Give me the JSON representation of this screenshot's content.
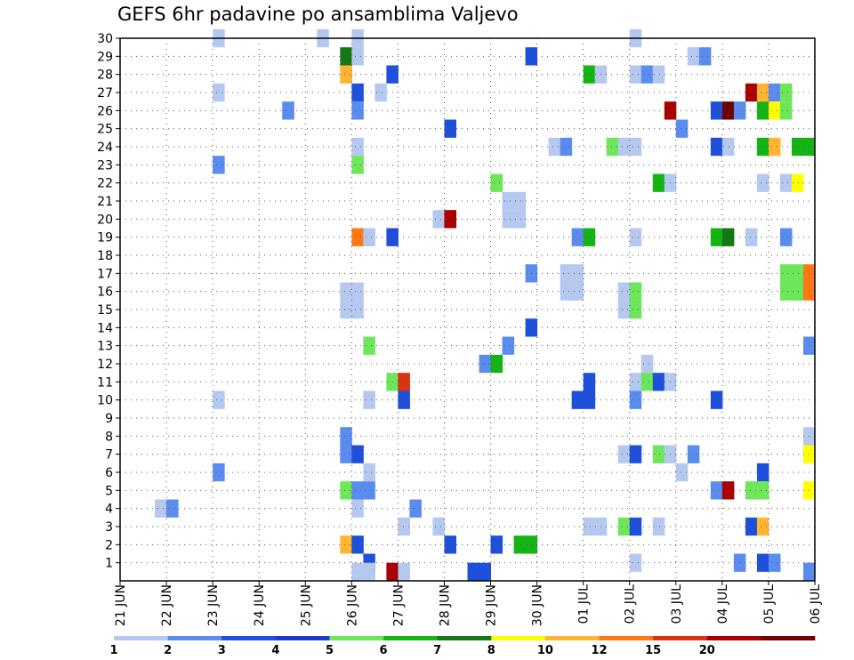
{
  "chart_data": {
    "type": "heatmap",
    "title": "GEFS 6hr padavine po ansamblima Valjevo",
    "x_ticks": [
      "21 JUN",
      "22 JUN",
      "23 JUN",
      "24 JUN",
      "25 JUN",
      "26 JUN",
      "27 JUN",
      "28 JUN",
      "29 JUN",
      "30 JUN",
      "01 JUL",
      "02 JUL",
      "03 JUL",
      "04 JUL",
      "05 JUL",
      "06 JUL"
    ],
    "x_range_days": [
      0,
      15
    ],
    "y_ticks": [
      1,
      2,
      3,
      4,
      5,
      6,
      7,
      8,
      9,
      10,
      11,
      12,
      13,
      14,
      15,
      16,
      17,
      18,
      19,
      20,
      21,
      22,
      23,
      24,
      25,
      26,
      27,
      28,
      29,
      30
    ],
    "y_range": [
      0,
      30
    ],
    "grid": "dotted",
    "legend_placement": "bottom",
    "colorbar": {
      "labels": [
        "1",
        "2",
        "3",
        "4",
        "5",
        "6",
        "7",
        "8",
        "10",
        "12",
        "15",
        "20"
      ],
      "colors": [
        "#b4c8f0",
        "#5a8cf0",
        "#1e50dc",
        "#1e3cc8",
        "#6ee65a",
        "#14b414",
        "#147814",
        "#ffff00",
        "#ffb432",
        "#ff7814",
        "#dc3214",
        "#aa0000",
        "#6e0000"
      ]
    },
    "cells": [
      {
        "x": 2.0,
        "y": 30,
        "c": 1
      },
      {
        "x": 4.25,
        "y": 30,
        "c": 1
      },
      {
        "x": 5.0,
        "y": 30,
        "c": 1
      },
      {
        "x": 11.0,
        "y": 30,
        "c": 1
      },
      {
        "x": 4.75,
        "y": 29,
        "c": 7
      },
      {
        "x": 5.0,
        "y": 29,
        "c": 1
      },
      {
        "x": 8.75,
        "y": 29,
        "c": 3
      },
      {
        "x": 12.25,
        "y": 29,
        "c": 1
      },
      {
        "x": 12.5,
        "y": 29,
        "c": 2
      },
      {
        "x": 4.75,
        "y": 28,
        "c": 9
      },
      {
        "x": 5.75,
        "y": 28,
        "c": 3
      },
      {
        "x": 10.0,
        "y": 28,
        "c": 6
      },
      {
        "x": 10.25,
        "y": 28,
        "c": 1
      },
      {
        "x": 11.0,
        "y": 28,
        "c": 1
      },
      {
        "x": 11.25,
        "y": 28,
        "c": 2
      },
      {
        "x": 11.5,
        "y": 28,
        "c": 1
      },
      {
        "x": 2.0,
        "y": 27,
        "c": 1
      },
      {
        "x": 5.0,
        "y": 27,
        "c": 3
      },
      {
        "x": 5.5,
        "y": 27,
        "c": 1
      },
      {
        "x": 13.5,
        "y": 27,
        "c": 12
      },
      {
        "x": 13.75,
        "y": 27,
        "c": 9
      },
      {
        "x": 14.0,
        "y": 27,
        "c": 2
      },
      {
        "x": 14.25,
        "y": 27,
        "c": 5
      },
      {
        "x": 3.5,
        "y": 26,
        "c": 2
      },
      {
        "x": 5.0,
        "y": 26,
        "c": 2
      },
      {
        "x": 11.75,
        "y": 26,
        "c": 12
      },
      {
        "x": 12.75,
        "y": 26,
        "c": 3
      },
      {
        "x": 13.0,
        "y": 26,
        "c": 13
      },
      {
        "x": 13.25,
        "y": 26,
        "c": 2
      },
      {
        "x": 13.75,
        "y": 26,
        "c": 6
      },
      {
        "x": 14.0,
        "y": 26,
        "c": 8
      },
      {
        "x": 14.25,
        "y": 26,
        "c": 5
      },
      {
        "x": 7.0,
        "y": 25,
        "c": 3
      },
      {
        "x": 12.0,
        "y": 25,
        "c": 2
      },
      {
        "x": 5.0,
        "y": 24,
        "c": 1
      },
      {
        "x": 9.25,
        "y": 24,
        "c": 1
      },
      {
        "x": 9.5,
        "y": 24,
        "c": 2
      },
      {
        "x": 10.5,
        "y": 24,
        "c": 5
      },
      {
        "x": 10.75,
        "y": 24,
        "c": 1
      },
      {
        "x": 11.0,
        "y": 24,
        "c": 1
      },
      {
        "x": 12.75,
        "y": 24,
        "c": 3
      },
      {
        "x": 13.0,
        "y": 24,
        "c": 1
      },
      {
        "x": 13.75,
        "y": 24,
        "c": 6
      },
      {
        "x": 14.0,
        "y": 24,
        "c": 9
      },
      {
        "x": 14.5,
        "y": 24,
        "c": 6
      },
      {
        "x": 14.75,
        "y": 24,
        "c": 6
      },
      {
        "x": 2.0,
        "y": 23,
        "c": 2
      },
      {
        "x": 5.0,
        "y": 23,
        "c": 5
      },
      {
        "x": 8.0,
        "y": 22,
        "c": 5
      },
      {
        "x": 11.5,
        "y": 22,
        "c": 6
      },
      {
        "x": 11.75,
        "y": 22,
        "c": 1
      },
      {
        "x": 13.75,
        "y": 22,
        "c": 1
      },
      {
        "x": 14.25,
        "y": 22,
        "c": 1
      },
      {
        "x": 14.5,
        "y": 22,
        "c": 8
      },
      {
        "x": 8.25,
        "y": 21,
        "c": 1
      },
      {
        "x": 8.5,
        "y": 21,
        "c": 1
      },
      {
        "x": 8.25,
        "y": 20,
        "c": 1
      },
      {
        "x": 8.5,
        "y": 20,
        "c": 1
      },
      {
        "x": 6.75,
        "y": 20,
        "c": 1
      },
      {
        "x": 7.0,
        "y": 20,
        "c": 12
      },
      {
        "x": 5.0,
        "y": 19,
        "c": 10
      },
      {
        "x": 5.25,
        "y": 19,
        "c": 1
      },
      {
        "x": 5.75,
        "y": 19,
        "c": 3
      },
      {
        "x": 9.75,
        "y": 19,
        "c": 2
      },
      {
        "x": 10.0,
        "y": 19,
        "c": 6
      },
      {
        "x": 11.0,
        "y": 19,
        "c": 1
      },
      {
        "x": 12.75,
        "y": 19,
        "c": 6
      },
      {
        "x": 13.0,
        "y": 19,
        "c": 7
      },
      {
        "x": 13.5,
        "y": 19,
        "c": 1
      },
      {
        "x": 14.25,
        "y": 19,
        "c": 2
      },
      {
        "x": 8.75,
        "y": 17,
        "c": 2
      },
      {
        "x": 9.5,
        "y": 17,
        "c": 1
      },
      {
        "x": 9.75,
        "y": 17,
        "c": 1
      },
      {
        "x": 14.25,
        "y": 17,
        "c": 5
      },
      {
        "x": 14.5,
        "y": 17,
        "c": 5
      },
      {
        "x": 14.75,
        "y": 17,
        "c": 10
      },
      {
        "x": 9.5,
        "y": 16,
        "c": 1
      },
      {
        "x": 9.75,
        "y": 16,
        "c": 1
      },
      {
        "x": 14.25,
        "y": 16,
        "c": 5
      },
      {
        "x": 14.5,
        "y": 16,
        "c": 5
      },
      {
        "x": 14.75,
        "y": 16,
        "c": 10
      },
      {
        "x": 4.75,
        "y": 16,
        "c": 1
      },
      {
        "x": 5.0,
        "y": 16,
        "c": 1
      },
      {
        "x": 4.75,
        "y": 15,
        "c": 1
      },
      {
        "x": 5.0,
        "y": 15,
        "c": 1
      },
      {
        "x": 10.75,
        "y": 16,
        "c": 1
      },
      {
        "x": 11.0,
        "y": 16,
        "c": 5
      },
      {
        "x": 10.75,
        "y": 15,
        "c": 1
      },
      {
        "x": 11.0,
        "y": 15,
        "c": 5
      },
      {
        "x": 8.75,
        "y": 14,
        "c": 3
      },
      {
        "x": 5.25,
        "y": 13,
        "c": 5
      },
      {
        "x": 8.25,
        "y": 13,
        "c": 2
      },
      {
        "x": 14.75,
        "y": 13,
        "c": 2
      },
      {
        "x": 7.75,
        "y": 12,
        "c": 2
      },
      {
        "x": 8.0,
        "y": 12,
        "c": 6
      },
      {
        "x": 11.25,
        "y": 12,
        "c": 1
      },
      {
        "x": 5.75,
        "y": 11,
        "c": 5
      },
      {
        "x": 6.0,
        "y": 11,
        "c": 11
      },
      {
        "x": 10.0,
        "y": 11,
        "c": 3
      },
      {
        "x": 11.0,
        "y": 11,
        "c": 1
      },
      {
        "x": 11.25,
        "y": 11,
        "c": 5
      },
      {
        "x": 11.5,
        "y": 11,
        "c": 3
      },
      {
        "x": 11.75,
        "y": 11,
        "c": 1
      },
      {
        "x": 2.0,
        "y": 10,
        "c": 1
      },
      {
        "x": 5.25,
        "y": 10,
        "c": 1
      },
      {
        "x": 6.0,
        "y": 10,
        "c": 3
      },
      {
        "x": 9.75,
        "y": 10,
        "c": 3
      },
      {
        "x": 10.0,
        "y": 10,
        "c": 3
      },
      {
        "x": 11.0,
        "y": 10,
        "c": 2
      },
      {
        "x": 12.75,
        "y": 10,
        "c": 3
      },
      {
        "x": 4.75,
        "y": 8,
        "c": 2
      },
      {
        "x": 14.75,
        "y": 8,
        "c": 1
      },
      {
        "x": 4.75,
        "y": 7,
        "c": 2
      },
      {
        "x": 5.0,
        "y": 7,
        "c": 3
      },
      {
        "x": 10.75,
        "y": 7,
        "c": 1
      },
      {
        "x": 11.0,
        "y": 7,
        "c": 3
      },
      {
        "x": 11.5,
        "y": 7,
        "c": 5
      },
      {
        "x": 11.75,
        "y": 7,
        "c": 1
      },
      {
        "x": 12.25,
        "y": 7,
        "c": 2
      },
      {
        "x": 14.75,
        "y": 7,
        "c": 8
      },
      {
        "x": 2.0,
        "y": 6,
        "c": 2
      },
      {
        "x": 5.25,
        "y": 6,
        "c": 1
      },
      {
        "x": 12.0,
        "y": 6,
        "c": 1
      },
      {
        "x": 13.75,
        "y": 6,
        "c": 3
      },
      {
        "x": 4.75,
        "y": 5,
        "c": 5
      },
      {
        "x": 5.0,
        "y": 5,
        "c": 2
      },
      {
        "x": 5.25,
        "y": 5,
        "c": 2
      },
      {
        "x": 12.75,
        "y": 5,
        "c": 2
      },
      {
        "x": 13.0,
        "y": 5,
        "c": 12
      },
      {
        "x": 13.5,
        "y": 5,
        "c": 5
      },
      {
        "x": 13.75,
        "y": 5,
        "c": 5
      },
      {
        "x": 14.75,
        "y": 5,
        "c": 8
      },
      {
        "x": 0.75,
        "y": 4,
        "c": 1
      },
      {
        "x": 1.0,
        "y": 4,
        "c": 2
      },
      {
        "x": 5.0,
        "y": 4,
        "c": 1
      },
      {
        "x": 6.25,
        "y": 4,
        "c": 2
      },
      {
        "x": 6.0,
        "y": 3,
        "c": 1
      },
      {
        "x": 6.75,
        "y": 3,
        "c": 1
      },
      {
        "x": 10.0,
        "y": 3,
        "c": 1
      },
      {
        "x": 10.25,
        "y": 3,
        "c": 1
      },
      {
        "x": 10.75,
        "y": 3,
        "c": 5
      },
      {
        "x": 11.0,
        "y": 3,
        "c": 3
      },
      {
        "x": 11.5,
        "y": 3,
        "c": 1
      },
      {
        "x": 13.5,
        "y": 3,
        "c": 3
      },
      {
        "x": 13.75,
        "y": 3,
        "c": 9
      },
      {
        "x": 4.75,
        "y": 2,
        "c": 9
      },
      {
        "x": 5.0,
        "y": 2,
        "c": 3
      },
      {
        "x": 7.0,
        "y": 2,
        "c": 3
      },
      {
        "x": 8.0,
        "y": 2,
        "c": 3
      },
      {
        "x": 8.5,
        "y": 2,
        "c": 6
      },
      {
        "x": 8.75,
        "y": 2,
        "c": 6
      },
      {
        "x": 5.25,
        "y": 1,
        "c": 3
      },
      {
        "x": 11.0,
        "y": 1,
        "c": 1
      },
      {
        "x": 13.25,
        "y": 1,
        "c": 2
      },
      {
        "x": 13.75,
        "y": 1,
        "c": 3
      },
      {
        "x": 14.0,
        "y": 1,
        "c": 2
      },
      {
        "x": 5.0,
        "y": 0.5,
        "c": 1
      },
      {
        "x": 5.25,
        "y": 0.5,
        "c": 1
      },
      {
        "x": 5.75,
        "y": 0.5,
        "c": 12
      },
      {
        "x": 6.0,
        "y": 0.5,
        "c": 1
      },
      {
        "x": 7.5,
        "y": 0.5,
        "c": 3
      },
      {
        "x": 7.75,
        "y": 0.5,
        "c": 3
      },
      {
        "x": 14.75,
        "y": 0.5,
        "c": 2
      }
    ]
  }
}
